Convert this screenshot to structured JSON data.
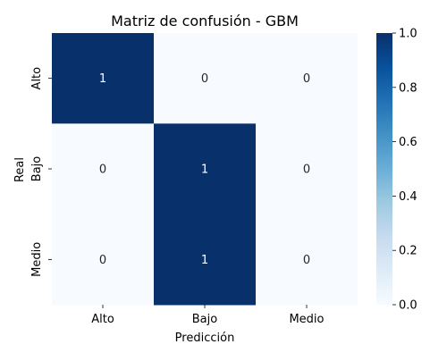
{
  "chart_data": {
    "type": "heatmap",
    "title": "Matriz de confusión - GBM",
    "xlabel": "Predicción",
    "ylabel": "Real",
    "x_categories": [
      "Alto",
      "Bajo",
      "Medio"
    ],
    "y_categories": [
      "Alto",
      "Bajo",
      "Medio"
    ],
    "values": [
      [
        1,
        0,
        0
      ],
      [
        0,
        1,
        0
      ],
      [
        0,
        1,
        0
      ]
    ],
    "colormap": "Blues",
    "color_range": [
      0.0,
      1.0
    ],
    "colorbar_ticks": [
      "0.0",
      "0.2",
      "0.4",
      "0.6",
      "0.8",
      "1.0"
    ],
    "colors": {
      "low": "#f7fbff",
      "high": "#08306b",
      "annotation_on_low": "#262626",
      "annotation_on_high": "#ffffff"
    },
    "grid": false
  }
}
